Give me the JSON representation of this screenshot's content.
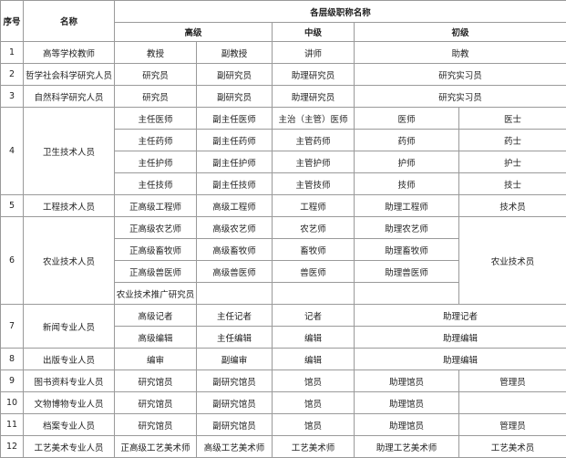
{
  "header": {
    "index": "序号",
    "name": "名称",
    "group": "各层级职称名称",
    "senior": "高级",
    "middle": "中级",
    "junior": "初级"
  },
  "rows": [
    {
      "index": 1,
      "name": "高等学校教师",
      "titles": [
        [
          "教授",
          "副教授",
          "讲师",
          "助教"
        ]
      ]
    },
    {
      "index": 2,
      "name": "哲学社会科学研究人员",
      "titles": [
        [
          "研究员",
          "副研究员",
          "助理研究员",
          "研究实习员"
        ]
      ]
    },
    {
      "index": 3,
      "name": "自然科学研究人员",
      "titles": [
        [
          "研究员",
          "副研究员",
          "助理研究员",
          "研究实习员"
        ]
      ]
    },
    {
      "index": 4,
      "name": "卫生技术人员",
      "titles": [
        [
          "主任医师",
          "副主任医师",
          "主治（主管）医师",
          "医师",
          "医士"
        ],
        [
          "主任药师",
          "副主任药师",
          "主管药师",
          "药师",
          "药士"
        ],
        [
          "主任护师",
          "副主任护师",
          "主管护师",
          "护师",
          "护士"
        ],
        [
          "主任技师",
          "副主任技师",
          "主管技师",
          "技师",
          "技士"
        ]
      ]
    },
    {
      "index": 5,
      "name": "工程技术人员",
      "titles": [
        [
          "正高级工程师",
          "高级工程师",
          "工程师",
          "助理工程师",
          "技术员"
        ]
      ]
    },
    {
      "index": 6,
      "name": "农业技术人员",
      "titles": [
        [
          "正高级农艺师",
          "高级农艺师",
          "农艺师",
          "助理农艺师",
          "农业技术员"
        ],
        [
          "正高级畜牧师",
          "高级畜牧师",
          "畜牧师",
          "助理畜牧师"
        ],
        [
          "正高级兽医师",
          "高级兽医师",
          "兽医师",
          "助理兽医师"
        ],
        [
          "农业技术推广研究员"
        ]
      ]
    },
    {
      "index": 7,
      "name": "新闻专业人员",
      "titles": [
        [
          "高级记者",
          "主任记者",
          "记者",
          "助理记者"
        ],
        [
          "高级编辑",
          "主任编辑",
          "编辑",
          "助理编辑"
        ]
      ]
    },
    {
      "index": 8,
      "name": "出版专业人员",
      "titles": [
        [
          "编审",
          "副编审",
          "编辑",
          "助理编辑"
        ]
      ]
    },
    {
      "index": 9,
      "name": "图书资料专业人员",
      "titles": [
        [
          "研究馆员",
          "副研究馆员",
          "馆员",
          "助理馆员",
          "管理员"
        ]
      ]
    },
    {
      "index": 10,
      "name": "文物博物专业人员",
      "titles": [
        [
          "研究馆员",
          "副研究馆员",
          "馆员",
          "助理馆员"
        ]
      ]
    },
    {
      "index": 11,
      "name": "档案专业人员",
      "titles": [
        [
          "研究馆员",
          "副研究馆员",
          "馆员",
          "助理馆员",
          "管理员"
        ]
      ]
    },
    {
      "index": 12,
      "name": "工艺美术专业人员",
      "titles": [
        [
          "正高级工艺美术师",
          "高级工艺美术师",
          "工艺美术师",
          "助理工艺美术师",
          "工艺美术员"
        ]
      ]
    }
  ]
}
